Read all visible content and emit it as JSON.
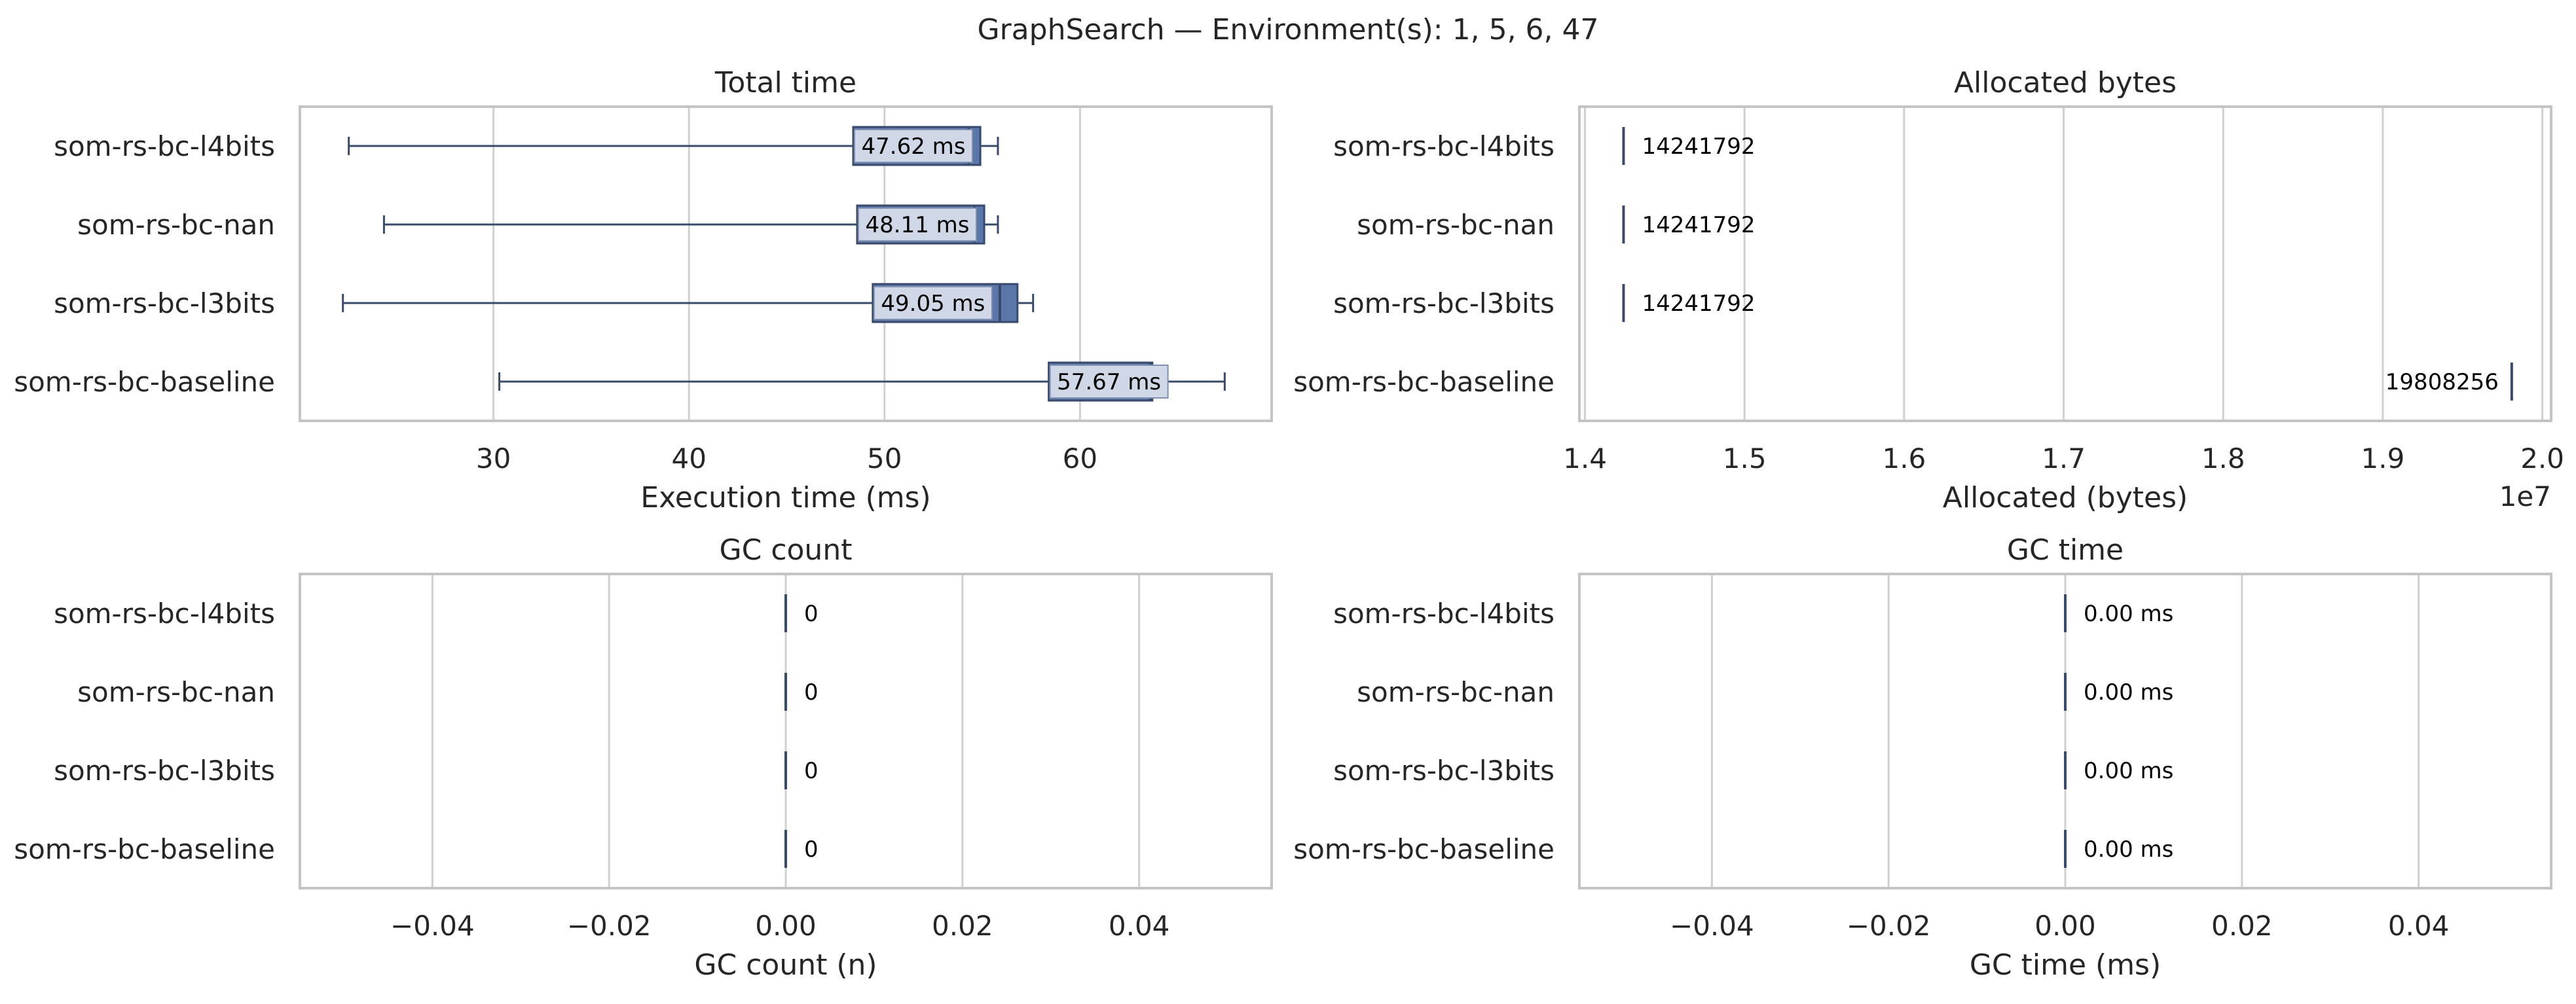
{
  "figure": {
    "title": "GraphSearch — Environment(s): 1, 5, 6, 47"
  },
  "colors": {
    "box_fill": "#5b76a8",
    "box_edge": "#3a4a6b",
    "label_fill": "#d0d8e8",
    "grid": "#d0d0d0",
    "frame": "#c4c4c4",
    "text": "#262626"
  },
  "chart_data": [
    {
      "type": "box",
      "title": "Total time",
      "xlabel": "Execution time (ms)",
      "ylabel": "",
      "xlim": [
        20.1,
        69.8
      ],
      "xticks": [
        30,
        40,
        50,
        60
      ],
      "xtick_labels": [
        "30",
        "40",
        "50",
        "60"
      ],
      "offset_label": "",
      "grid": true,
      "categories": [
        "som-rs-bc-l4bits",
        "som-rs-bc-nan",
        "som-rs-bc-l3bits",
        "som-rs-bc-baseline"
      ],
      "boxes": [
        {
          "whislo": 22.6,
          "q1": 48.4,
          "med": 54.3,
          "q3": 54.9,
          "whishi": 55.8
        },
        {
          "whislo": 24.4,
          "q1": 48.6,
          "med": 54.6,
          "q3": 55.1,
          "whishi": 55.8
        },
        {
          "whislo": 22.3,
          "q1": 49.4,
          "med": 55.9,
          "q3": 56.8,
          "whishi": 57.6
        },
        {
          "whislo": 30.3,
          "q1": 58.4,
          "med": 63.6,
          "q3": 63.7,
          "whishi": 67.4
        }
      ],
      "value_labels": [
        "47.62 ms",
        "48.11 ms",
        "49.05 ms",
        "57.67 ms"
      ],
      "label_x": [
        48.4,
        48.6,
        49.4,
        58.4
      ]
    },
    {
      "type": "box",
      "title": "Allocated bytes",
      "xlabel": "Allocated (bytes)",
      "ylabel": "",
      "xlim": [
        1.3965,
        2.0055
      ],
      "xticks": [
        1.4,
        1.5,
        1.6,
        1.7,
        1.8,
        1.9,
        2.0
      ],
      "xtick_labels": [
        "1.4",
        "1.5",
        "1.6",
        "1.7",
        "1.8",
        "1.9",
        "2.0"
      ],
      "offset_label": "1e7",
      "grid": true,
      "categories": [
        "som-rs-bc-l4bits",
        "som-rs-bc-nan",
        "som-rs-bc-l3bits",
        "som-rs-bc-baseline"
      ],
      "boxes": [
        {
          "whislo": 1.4241792,
          "q1": 1.4241792,
          "med": 1.4241792,
          "q3": 1.4241792,
          "whishi": 1.4241792
        },
        {
          "whislo": 1.4241792,
          "q1": 1.4241792,
          "med": 1.4241792,
          "q3": 1.4241792,
          "whishi": 1.4241792
        },
        {
          "whislo": 1.4241792,
          "q1": 1.4241792,
          "med": 1.4241792,
          "q3": 1.4241792,
          "whishi": 1.4241792
        },
        {
          "whislo": 1.9808256,
          "q1": 1.9808256,
          "med": 1.9808256,
          "q3": 1.9808256,
          "whishi": 1.9808256
        }
      ],
      "value_labels": [
        "14241792",
        "14241792",
        "14241792",
        "19808256"
      ],
      "label_x": [
        1.4241792,
        1.4241792,
        1.4241792,
        1.9808256
      ]
    },
    {
      "type": "box",
      "title": "GC count",
      "xlabel": "GC count (n)",
      "ylabel": "",
      "xlim": [
        -0.055,
        0.055
      ],
      "xticks": [
        -0.04,
        -0.02,
        0.0,
        0.02,
        0.04
      ],
      "xtick_labels": [
        "−0.04",
        "−0.02",
        "0.00",
        "0.02",
        "0.04"
      ],
      "offset_label": "",
      "grid": true,
      "categories": [
        "som-rs-bc-l4bits",
        "som-rs-bc-nan",
        "som-rs-bc-l3bits",
        "som-rs-bc-baseline"
      ],
      "boxes": [
        {
          "whislo": 0,
          "q1": 0,
          "med": 0,
          "q3": 0,
          "whishi": 0
        },
        {
          "whislo": 0,
          "q1": 0,
          "med": 0,
          "q3": 0,
          "whishi": 0
        },
        {
          "whislo": 0,
          "q1": 0,
          "med": 0,
          "q3": 0,
          "whishi": 0
        },
        {
          "whislo": 0,
          "q1": 0,
          "med": 0,
          "q3": 0,
          "whishi": 0
        }
      ],
      "value_labels": [
        "0",
        "0",
        "0",
        "0"
      ],
      "label_x": [
        0,
        0,
        0,
        0
      ]
    },
    {
      "type": "box",
      "title": "GC time",
      "xlabel": "GC time (ms)",
      "ylabel": "",
      "xlim": [
        -0.055,
        0.055
      ],
      "xticks": [
        -0.04,
        -0.02,
        0.0,
        0.02,
        0.04
      ],
      "xtick_labels": [
        "−0.04",
        "−0.02",
        "0.00",
        "0.02",
        "0.04"
      ],
      "offset_label": "",
      "grid": true,
      "categories": [
        "som-rs-bc-l4bits",
        "som-rs-bc-nan",
        "som-rs-bc-l3bits",
        "som-rs-bc-baseline"
      ],
      "boxes": [
        {
          "whislo": 0,
          "q1": 0,
          "med": 0,
          "q3": 0,
          "whishi": 0
        },
        {
          "whislo": 0,
          "q1": 0,
          "med": 0,
          "q3": 0,
          "whishi": 0
        },
        {
          "whislo": 0,
          "q1": 0,
          "med": 0,
          "q3": 0,
          "whishi": 0
        },
        {
          "whislo": 0,
          "q1": 0,
          "med": 0,
          "q3": 0,
          "whishi": 0
        }
      ],
      "value_labels": [
        "0.00 ms",
        "0.00 ms",
        "0.00 ms",
        "0.00 ms"
      ],
      "label_x": [
        0,
        0,
        0,
        0
      ]
    }
  ]
}
